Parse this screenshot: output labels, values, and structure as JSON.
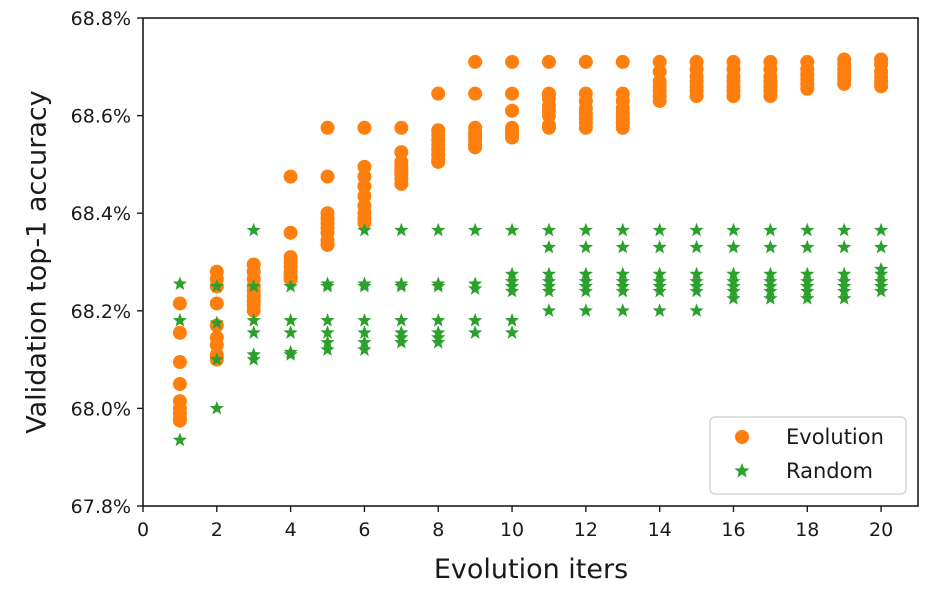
{
  "chart_data": {
    "type": "scatter",
    "title": "",
    "xlabel": "Evolution iters",
    "ylabel": "Validation top-1 accuracy",
    "xlim": [
      0,
      21
    ],
    "ylim": [
      67.8,
      68.8
    ],
    "xticks": [
      0,
      2,
      4,
      6,
      8,
      10,
      12,
      14,
      16,
      18,
      20
    ],
    "xtick_labels": [
      "0",
      "2",
      "4",
      "6",
      "8",
      "10",
      "12",
      "14",
      "16",
      "18",
      "20"
    ],
    "yticks": [
      67.8,
      68.0,
      68.2,
      68.4,
      68.6,
      68.8
    ],
    "ytick_labels": [
      "67.8%",
      "68.0%",
      "68.2%",
      "68.4%",
      "68.6%",
      "68.8%"
    ],
    "grid": false,
    "legend_position": "bottom-right",
    "series": [
      {
        "name": "Evolution",
        "marker": "circle",
        "color": "#ff7f0e",
        "points": [
          [
            1,
            68.215
          ],
          [
            1,
            68.155
          ],
          [
            1,
            68.095
          ],
          [
            1,
            68.05
          ],
          [
            1,
            68.015
          ],
          [
            1,
            68.0
          ],
          [
            1,
            67.99
          ],
          [
            1,
            67.98
          ],
          [
            1,
            67.975
          ],
          [
            2,
            68.28
          ],
          [
            2,
            68.265
          ],
          [
            2,
            68.25
          ],
          [
            2,
            68.215
          ],
          [
            2,
            68.17
          ],
          [
            2,
            68.145
          ],
          [
            2,
            68.13
          ],
          [
            2,
            68.11
          ],
          [
            2,
            68.1
          ],
          [
            3,
            68.295
          ],
          [
            3,
            68.28
          ],
          [
            3,
            68.265
          ],
          [
            3,
            68.25
          ],
          [
            3,
            68.24
          ],
          [
            3,
            68.23
          ],
          [
            3,
            68.22
          ],
          [
            3,
            68.21
          ],
          [
            3,
            68.2
          ],
          [
            4,
            68.475
          ],
          [
            4,
            68.36
          ],
          [
            4,
            68.31
          ],
          [
            4,
            68.3
          ],
          [
            4,
            68.29
          ],
          [
            4,
            68.28
          ],
          [
            4,
            68.275
          ],
          [
            4,
            68.27
          ],
          [
            4,
            68.265
          ],
          [
            5,
            68.575
          ],
          [
            5,
            68.475
          ],
          [
            5,
            68.4
          ],
          [
            5,
            68.39
          ],
          [
            5,
            68.38
          ],
          [
            5,
            68.37
          ],
          [
            5,
            68.36
          ],
          [
            5,
            68.345
          ],
          [
            5,
            68.335
          ],
          [
            6,
            68.575
          ],
          [
            6,
            68.495
          ],
          [
            6,
            68.475
          ],
          [
            6,
            68.455
          ],
          [
            6,
            68.435
          ],
          [
            6,
            68.415
          ],
          [
            6,
            68.4
          ],
          [
            6,
            68.39
          ],
          [
            6,
            68.38
          ],
          [
            7,
            68.575
          ],
          [
            7,
            68.525
          ],
          [
            7,
            68.505
          ],
          [
            7,
            68.495
          ],
          [
            7,
            68.49
          ],
          [
            7,
            68.485
          ],
          [
            7,
            68.48
          ],
          [
            7,
            68.47
          ],
          [
            7,
            68.46
          ],
          [
            8,
            68.645
          ],
          [
            8,
            68.57
          ],
          [
            8,
            68.56
          ],
          [
            8,
            68.55
          ],
          [
            8,
            68.54
          ],
          [
            8,
            68.53
          ],
          [
            8,
            68.52
          ],
          [
            8,
            68.51
          ],
          [
            8,
            68.505
          ],
          [
            9,
            68.71
          ],
          [
            9,
            68.645
          ],
          [
            9,
            68.575
          ],
          [
            9,
            68.565
          ],
          [
            9,
            68.56
          ],
          [
            9,
            68.555
          ],
          [
            9,
            68.55
          ],
          [
            9,
            68.54
          ],
          [
            9,
            68.535
          ],
          [
            10,
            68.71
          ],
          [
            10,
            68.645
          ],
          [
            10,
            68.61
          ],
          [
            10,
            68.575
          ],
          [
            10,
            68.57
          ],
          [
            10,
            68.565
          ],
          [
            10,
            68.56
          ],
          [
            10,
            68.555
          ],
          [
            11,
            68.71
          ],
          [
            11,
            68.645
          ],
          [
            11,
            68.635
          ],
          [
            11,
            68.62
          ],
          [
            11,
            68.61
          ],
          [
            11,
            68.6
          ],
          [
            11,
            68.58
          ],
          [
            11,
            68.575
          ],
          [
            12,
            68.71
          ],
          [
            12,
            68.645
          ],
          [
            12,
            68.63
          ],
          [
            12,
            68.615
          ],
          [
            12,
            68.605
          ],
          [
            12,
            68.595
          ],
          [
            12,
            68.585
          ],
          [
            12,
            68.575
          ],
          [
            13,
            68.71
          ],
          [
            13,
            68.645
          ],
          [
            13,
            68.63
          ],
          [
            13,
            68.615
          ],
          [
            13,
            68.605
          ],
          [
            13,
            68.595
          ],
          [
            13,
            68.585
          ],
          [
            13,
            68.575
          ],
          [
            14,
            68.71
          ],
          [
            14,
            68.69
          ],
          [
            14,
            68.67
          ],
          [
            14,
            68.66
          ],
          [
            14,
            68.65
          ],
          [
            14,
            68.64
          ],
          [
            14,
            68.63
          ],
          [
            15,
            68.71
          ],
          [
            15,
            68.695
          ],
          [
            15,
            68.68
          ],
          [
            15,
            68.67
          ],
          [
            15,
            68.66
          ],
          [
            15,
            68.65
          ],
          [
            15,
            68.64
          ],
          [
            16,
            68.71
          ],
          [
            16,
            68.695
          ],
          [
            16,
            68.68
          ],
          [
            16,
            68.67
          ],
          [
            16,
            68.66
          ],
          [
            16,
            68.65
          ],
          [
            16,
            68.64
          ],
          [
            17,
            68.71
          ],
          [
            17,
            68.695
          ],
          [
            17,
            68.68
          ],
          [
            17,
            68.67
          ],
          [
            17,
            68.66
          ],
          [
            17,
            68.65
          ],
          [
            17,
            68.64
          ],
          [
            18,
            68.71
          ],
          [
            18,
            68.695
          ],
          [
            18,
            68.685
          ],
          [
            18,
            68.675
          ],
          [
            18,
            68.665
          ],
          [
            18,
            68.655
          ],
          [
            19,
            68.715
          ],
          [
            19,
            68.705
          ],
          [
            19,
            68.695
          ],
          [
            19,
            68.685
          ],
          [
            19,
            68.675
          ],
          [
            19,
            68.665
          ],
          [
            20,
            68.715
          ],
          [
            20,
            68.705
          ],
          [
            20,
            68.69
          ],
          [
            20,
            68.68
          ],
          [
            20,
            68.67
          ],
          [
            20,
            68.66
          ]
        ]
      },
      {
        "name": "Random",
        "marker": "star",
        "color": "#2ca02c",
        "points": [
          [
            1,
            68.255
          ],
          [
            1,
            68.18
          ],
          [
            1,
            67.935
          ],
          [
            2,
            68.25
          ],
          [
            2,
            68.175
          ],
          [
            2,
            68.1
          ],
          [
            2,
            68.0
          ],
          [
            3,
            68.365
          ],
          [
            3,
            68.25
          ],
          [
            3,
            68.18
          ],
          [
            3,
            68.155
          ],
          [
            3,
            68.11
          ],
          [
            3,
            68.1
          ],
          [
            4,
            68.25
          ],
          [
            4,
            68.18
          ],
          [
            4,
            68.155
          ],
          [
            4,
            68.115
          ],
          [
            4,
            68.11
          ],
          [
            5,
            68.255
          ],
          [
            5,
            68.25
          ],
          [
            5,
            68.18
          ],
          [
            5,
            68.155
          ],
          [
            5,
            68.135
          ],
          [
            5,
            68.12
          ],
          [
            6,
            68.365
          ],
          [
            6,
            68.255
          ],
          [
            6,
            68.25
          ],
          [
            6,
            68.18
          ],
          [
            6,
            68.155
          ],
          [
            6,
            68.135
          ],
          [
            6,
            68.12
          ],
          [
            7,
            68.365
          ],
          [
            7,
            68.255
          ],
          [
            7,
            68.25
          ],
          [
            7,
            68.18
          ],
          [
            7,
            68.155
          ],
          [
            7,
            68.145
          ],
          [
            7,
            68.135
          ],
          [
            8,
            68.365
          ],
          [
            8,
            68.255
          ],
          [
            8,
            68.25
          ],
          [
            8,
            68.18
          ],
          [
            8,
            68.155
          ],
          [
            8,
            68.145
          ],
          [
            8,
            68.135
          ],
          [
            9,
            68.365
          ],
          [
            9,
            68.255
          ],
          [
            9,
            68.245
          ],
          [
            9,
            68.18
          ],
          [
            9,
            68.155
          ],
          [
            10,
            68.365
          ],
          [
            10,
            68.275
          ],
          [
            10,
            68.26
          ],
          [
            10,
            68.25
          ],
          [
            10,
            68.24
          ],
          [
            10,
            68.18
          ],
          [
            10,
            68.155
          ],
          [
            11,
            68.365
          ],
          [
            11,
            68.33
          ],
          [
            11,
            68.275
          ],
          [
            11,
            68.26
          ],
          [
            11,
            68.25
          ],
          [
            11,
            68.24
          ],
          [
            11,
            68.2
          ],
          [
            12,
            68.365
          ],
          [
            12,
            68.33
          ],
          [
            12,
            68.275
          ],
          [
            12,
            68.26
          ],
          [
            12,
            68.25
          ],
          [
            12,
            68.24
          ],
          [
            12,
            68.2
          ],
          [
            13,
            68.365
          ],
          [
            13,
            68.33
          ],
          [
            13,
            68.275
          ],
          [
            13,
            68.26
          ],
          [
            13,
            68.25
          ],
          [
            13,
            68.24
          ],
          [
            13,
            68.2
          ],
          [
            14,
            68.365
          ],
          [
            14,
            68.33
          ],
          [
            14,
            68.275
          ],
          [
            14,
            68.26
          ],
          [
            14,
            68.25
          ],
          [
            14,
            68.24
          ],
          [
            14,
            68.2
          ],
          [
            15,
            68.365
          ],
          [
            15,
            68.33
          ],
          [
            15,
            68.275
          ],
          [
            15,
            68.26
          ],
          [
            15,
            68.25
          ],
          [
            15,
            68.24
          ],
          [
            15,
            68.2
          ],
          [
            16,
            68.365
          ],
          [
            16,
            68.33
          ],
          [
            16,
            68.275
          ],
          [
            16,
            68.26
          ],
          [
            16,
            68.25
          ],
          [
            16,
            68.24
          ],
          [
            16,
            68.225
          ],
          [
            17,
            68.365
          ],
          [
            17,
            68.33
          ],
          [
            17,
            68.275
          ],
          [
            17,
            68.26
          ],
          [
            17,
            68.25
          ],
          [
            17,
            68.24
          ],
          [
            17,
            68.225
          ],
          [
            18,
            68.365
          ],
          [
            18,
            68.33
          ],
          [
            18,
            68.275
          ],
          [
            18,
            68.26
          ],
          [
            18,
            68.25
          ],
          [
            18,
            68.24
          ],
          [
            18,
            68.225
          ],
          [
            19,
            68.365
          ],
          [
            19,
            68.33
          ],
          [
            19,
            68.275
          ],
          [
            19,
            68.26
          ],
          [
            19,
            68.25
          ],
          [
            19,
            68.24
          ],
          [
            19,
            68.225
          ],
          [
            20,
            68.365
          ],
          [
            20,
            68.33
          ],
          [
            20,
            68.285
          ],
          [
            20,
            68.275
          ],
          [
            20,
            68.26
          ],
          [
            20,
            68.25
          ],
          [
            20,
            68.24
          ]
        ]
      }
    ]
  }
}
